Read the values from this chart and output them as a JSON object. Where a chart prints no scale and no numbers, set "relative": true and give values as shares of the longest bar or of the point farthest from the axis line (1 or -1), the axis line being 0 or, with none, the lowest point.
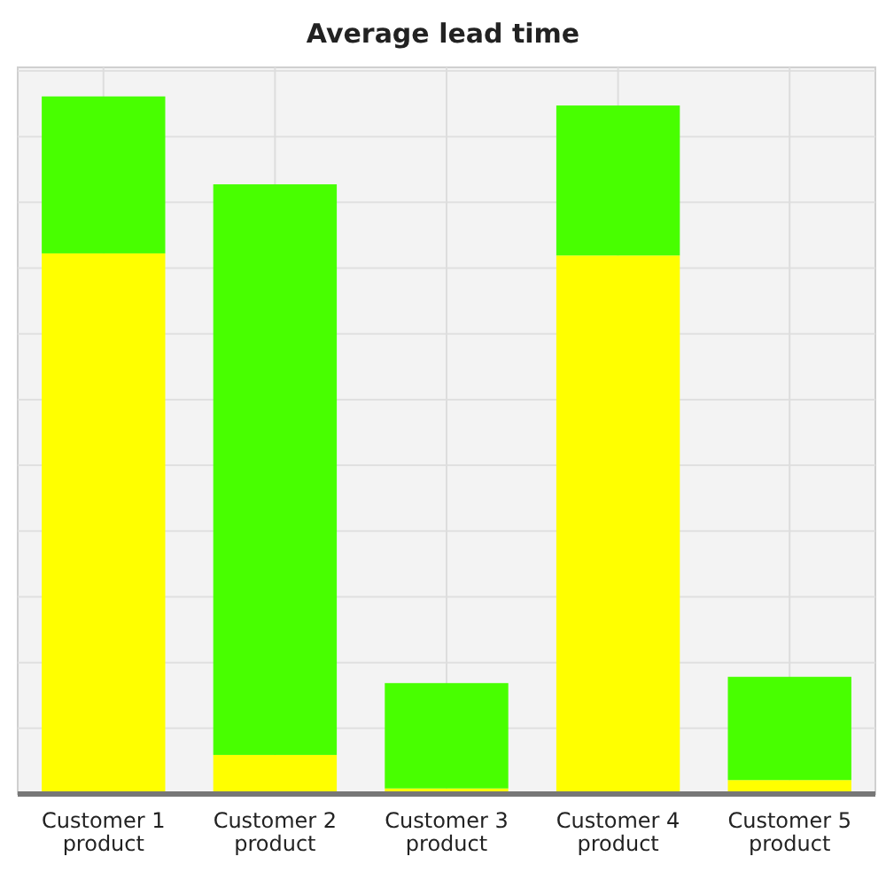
{
  "chart_data": {
    "type": "bar",
    "title": "Average lead time",
    "categories": [
      "Customer 1 product",
      "Customer 2 product",
      "Customer 3 product",
      "Customer 4 product",
      "Customer 5 product"
    ],
    "relative": true,
    "stacked": true,
    "grid": true,
    "series": [
      {
        "color": "#ffff00",
        "values": [
          0.775,
          0.056,
          0.008,
          0.772,
          0.02
        ]
      },
      {
        "color": "#48ff00",
        "values": [
          0.225,
          0.818,
          0.151,
          0.215,
          0.148
        ]
      }
    ]
  }
}
